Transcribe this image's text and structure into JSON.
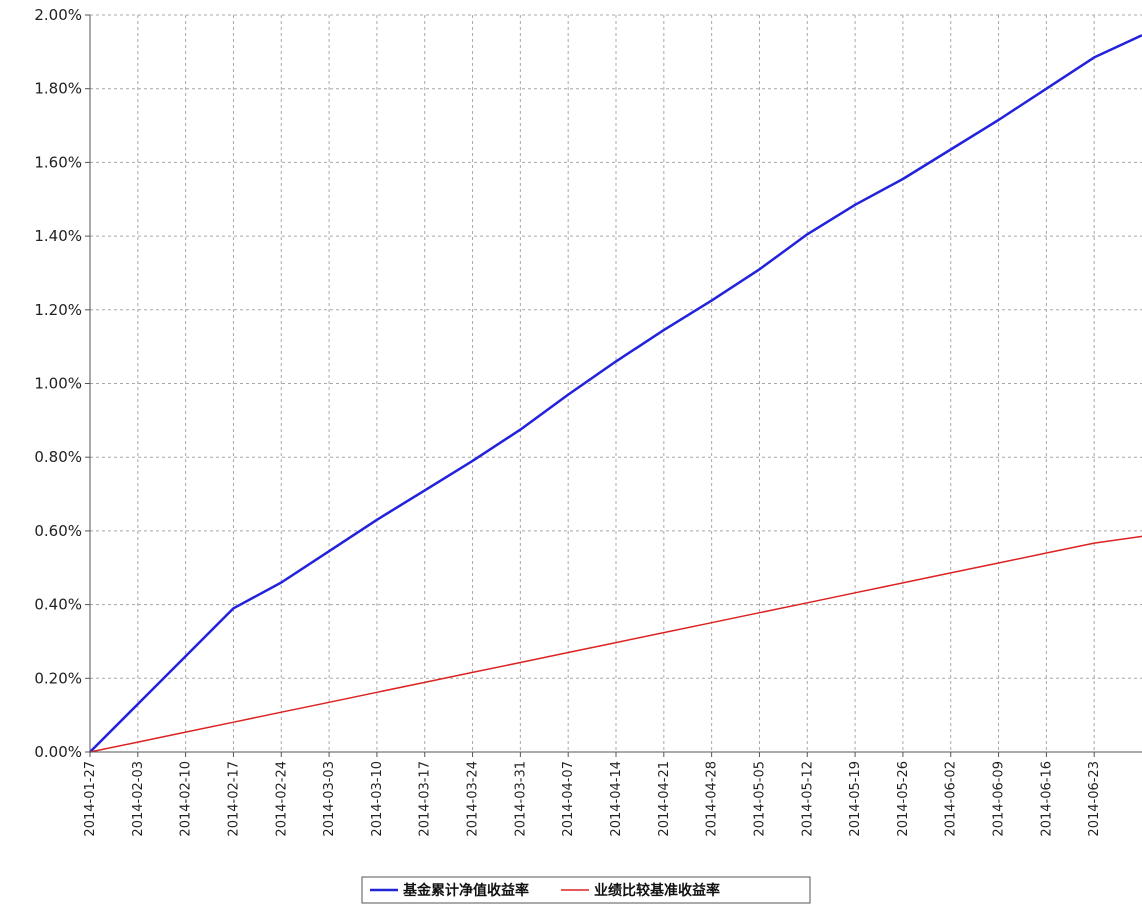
{
  "chart_data": {
    "type": "line",
    "x_start": "2014-01-27",
    "x_end": "2014-06-30",
    "x_ticks": [
      "2014-01-27",
      "2014-02-03",
      "2014-02-10",
      "2014-02-17",
      "2014-02-24",
      "2014-03-03",
      "2014-03-10",
      "2014-03-17",
      "2014-03-24",
      "2014-03-31",
      "2014-04-07",
      "2014-04-14",
      "2014-04-21",
      "2014-04-28",
      "2014-05-05",
      "2014-05-12",
      "2014-05-19",
      "2014-05-26",
      "2014-06-02",
      "2014-06-09",
      "2014-06-16",
      "2014-06-23"
    ],
    "ylim": [
      0,
      2.0
    ],
    "y_ticks": [
      0.0,
      0.2,
      0.4,
      0.6,
      0.8,
      1.0,
      1.2,
      1.4,
      1.6,
      1.8,
      2.0
    ],
    "y_tick_labels": [
      "0.00%",
      "0.20%",
      "0.40%",
      "0.60%",
      "0.80%",
      "1.00%",
      "1.20%",
      "1.40%",
      "1.60%",
      "1.80%",
      "2.00%"
    ],
    "grid": true,
    "legend_position": "bottom-center",
    "series": [
      {
        "name": "基金累计净值收益率",
        "color": "#2222dd",
        "points": [
          [
            "2014-01-27",
            0.0
          ],
          [
            "2014-02-03",
            0.13
          ],
          [
            "2014-02-10",
            0.26
          ],
          [
            "2014-02-17",
            0.39
          ],
          [
            "2014-02-24",
            0.46
          ],
          [
            "2014-03-03",
            0.545
          ],
          [
            "2014-03-10",
            0.63
          ],
          [
            "2014-03-17",
            0.71
          ],
          [
            "2014-03-24",
            0.79
          ],
          [
            "2014-03-31",
            0.875
          ],
          [
            "2014-04-07",
            0.97
          ],
          [
            "2014-04-14",
            1.06
          ],
          [
            "2014-04-21",
            1.145
          ],
          [
            "2014-04-28",
            1.225
          ],
          [
            "2014-05-05",
            1.31
          ],
          [
            "2014-05-12",
            1.405
          ],
          [
            "2014-05-19",
            1.485
          ],
          [
            "2014-05-26",
            1.555
          ],
          [
            "2014-06-02",
            1.635
          ],
          [
            "2014-06-09",
            1.715
          ],
          [
            "2014-06-16",
            1.8
          ],
          [
            "2014-06-23",
            1.885
          ],
          [
            "2014-06-30",
            1.945
          ]
        ]
      },
      {
        "name": "业绩比较基准收益率",
        "color": "#dd2222",
        "points": [
          [
            "2014-01-27",
            0.0
          ],
          [
            "2014-02-03",
            0.027
          ],
          [
            "2014-02-10",
            0.054
          ],
          [
            "2014-02-17",
            0.081
          ],
          [
            "2014-02-24",
            0.108
          ],
          [
            "2014-03-03",
            0.135
          ],
          [
            "2014-03-10",
            0.162
          ],
          [
            "2014-03-17",
            0.189
          ],
          [
            "2014-03-24",
            0.216
          ],
          [
            "2014-03-31",
            0.243
          ],
          [
            "2014-04-07",
            0.27
          ],
          [
            "2014-04-14",
            0.297
          ],
          [
            "2014-04-21",
            0.324
          ],
          [
            "2014-04-28",
            0.351
          ],
          [
            "2014-05-05",
            0.378
          ],
          [
            "2014-05-12",
            0.405
          ],
          [
            "2014-05-19",
            0.432
          ],
          [
            "2014-05-26",
            0.459
          ],
          [
            "2014-06-02",
            0.486
          ],
          [
            "2014-06-09",
            0.513
          ],
          [
            "2014-06-16",
            0.54
          ],
          [
            "2014-06-23",
            0.567
          ],
          [
            "2014-06-30",
            0.585
          ]
        ]
      }
    ]
  }
}
